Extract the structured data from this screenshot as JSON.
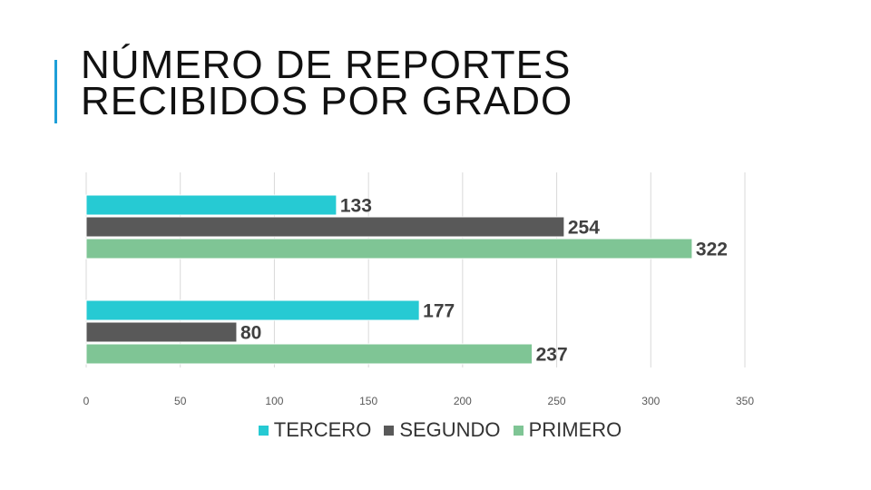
{
  "title": {
    "line1": "NÚMERO DE REPORTES",
    "line2": "RECIBIDOS POR GRADO"
  },
  "chart_data": {
    "type": "bar",
    "orientation": "horizontal",
    "xlim": [
      0,
      350
    ],
    "x_ticks": [
      "0",
      "50",
      "100",
      "150",
      "200",
      "250",
      "300",
      "350"
    ],
    "grid": true,
    "legend_position": "bottom",
    "groups": [
      {
        "series": [
          {
            "name": "TERCERO",
            "value": 133
          },
          {
            "name": "SEGUNDO",
            "value": 254
          },
          {
            "name": "PRIMERO",
            "value": 322
          }
        ]
      },
      {
        "series": [
          {
            "name": "TERCERO",
            "value": 177
          },
          {
            "name": "SEGUNDO",
            "value": 80
          },
          {
            "name": "PRIMERO",
            "value": 237
          }
        ]
      }
    ],
    "series_colors": {
      "TERCERO": "#26cad3",
      "SEGUNDO": "#595959",
      "PRIMERO": "#7fc595"
    }
  },
  "legend": [
    {
      "label": "TERCERO",
      "color": "#26cad3"
    },
    {
      "label": "SEGUNDO",
      "color": "#595959"
    },
    {
      "label": "PRIMERO",
      "color": "#7fc595"
    }
  ]
}
